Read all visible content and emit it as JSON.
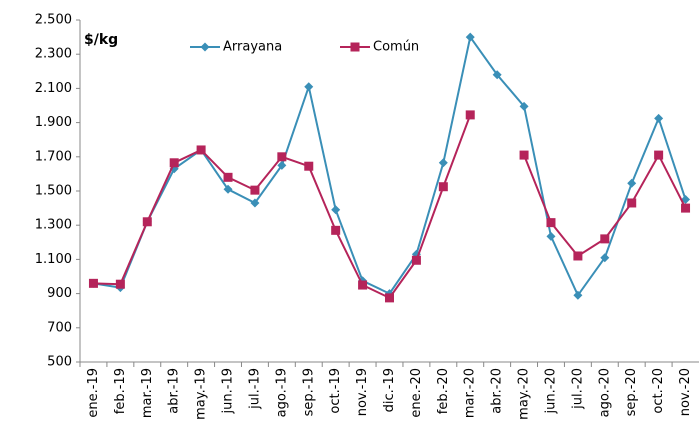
{
  "chart_data": {
    "type": "line",
    "title": "$/kg",
    "categories": [
      "ene.-19",
      "feb.-19",
      "mar.-19",
      "abr.-19",
      "may.-19",
      "jun.-19",
      "jul.-19",
      "ago.-19",
      "sep.-19",
      "oct.-19",
      "nov.-19",
      "dic.-19",
      "ene.-20",
      "feb.-20",
      "mar.-20",
      "abr.-20",
      "may.-20",
      "jun.-20",
      "jul.-20",
      "ago.-20",
      "sep.-20",
      "oct.-20",
      "nov.-20"
    ],
    "series": [
      {
        "name": "Arrayana",
        "color": "#3a8fb7",
        "marker": "diamond",
        "values": [
          960,
          935,
          1320,
          1630,
          1740,
          1510,
          1430,
          1650,
          2110,
          1390,
          975,
          900,
          1130,
          1665,
          2400,
          2180,
          1995,
          1235,
          890,
          1110,
          1545,
          1925,
          1450
        ]
      },
      {
        "name": "Común",
        "color": "#b5245a",
        "marker": "square",
        "values": [
          960,
          955,
          1320,
          1665,
          1740,
          1580,
          1505,
          1700,
          1645,
          1270,
          950,
          875,
          1095,
          1525,
          1945,
          null,
          1710,
          1315,
          1120,
          1220,
          1430,
          1710,
          1400
        ]
      }
    ],
    "ylim": [
      500,
      2500
    ],
    "yticks": [
      500,
      700,
      900,
      {
        "value": 1100,
        "label": "1.100"
      },
      {
        "value": 1300,
        "label": "1.300"
      },
      {
        "value": 1500,
        "label": "1.500"
      },
      {
        "value": 1700,
        "label": "1.700"
      },
      {
        "value": 1900,
        "label": "1.900"
      },
      {
        "value": 2100,
        "label": "2.100"
      },
      {
        "value": 2300,
        "label": "2.300"
      },
      {
        "value": 2500,
        "label": "2.500"
      }
    ],
    "grid": false,
    "legend": "top"
  }
}
